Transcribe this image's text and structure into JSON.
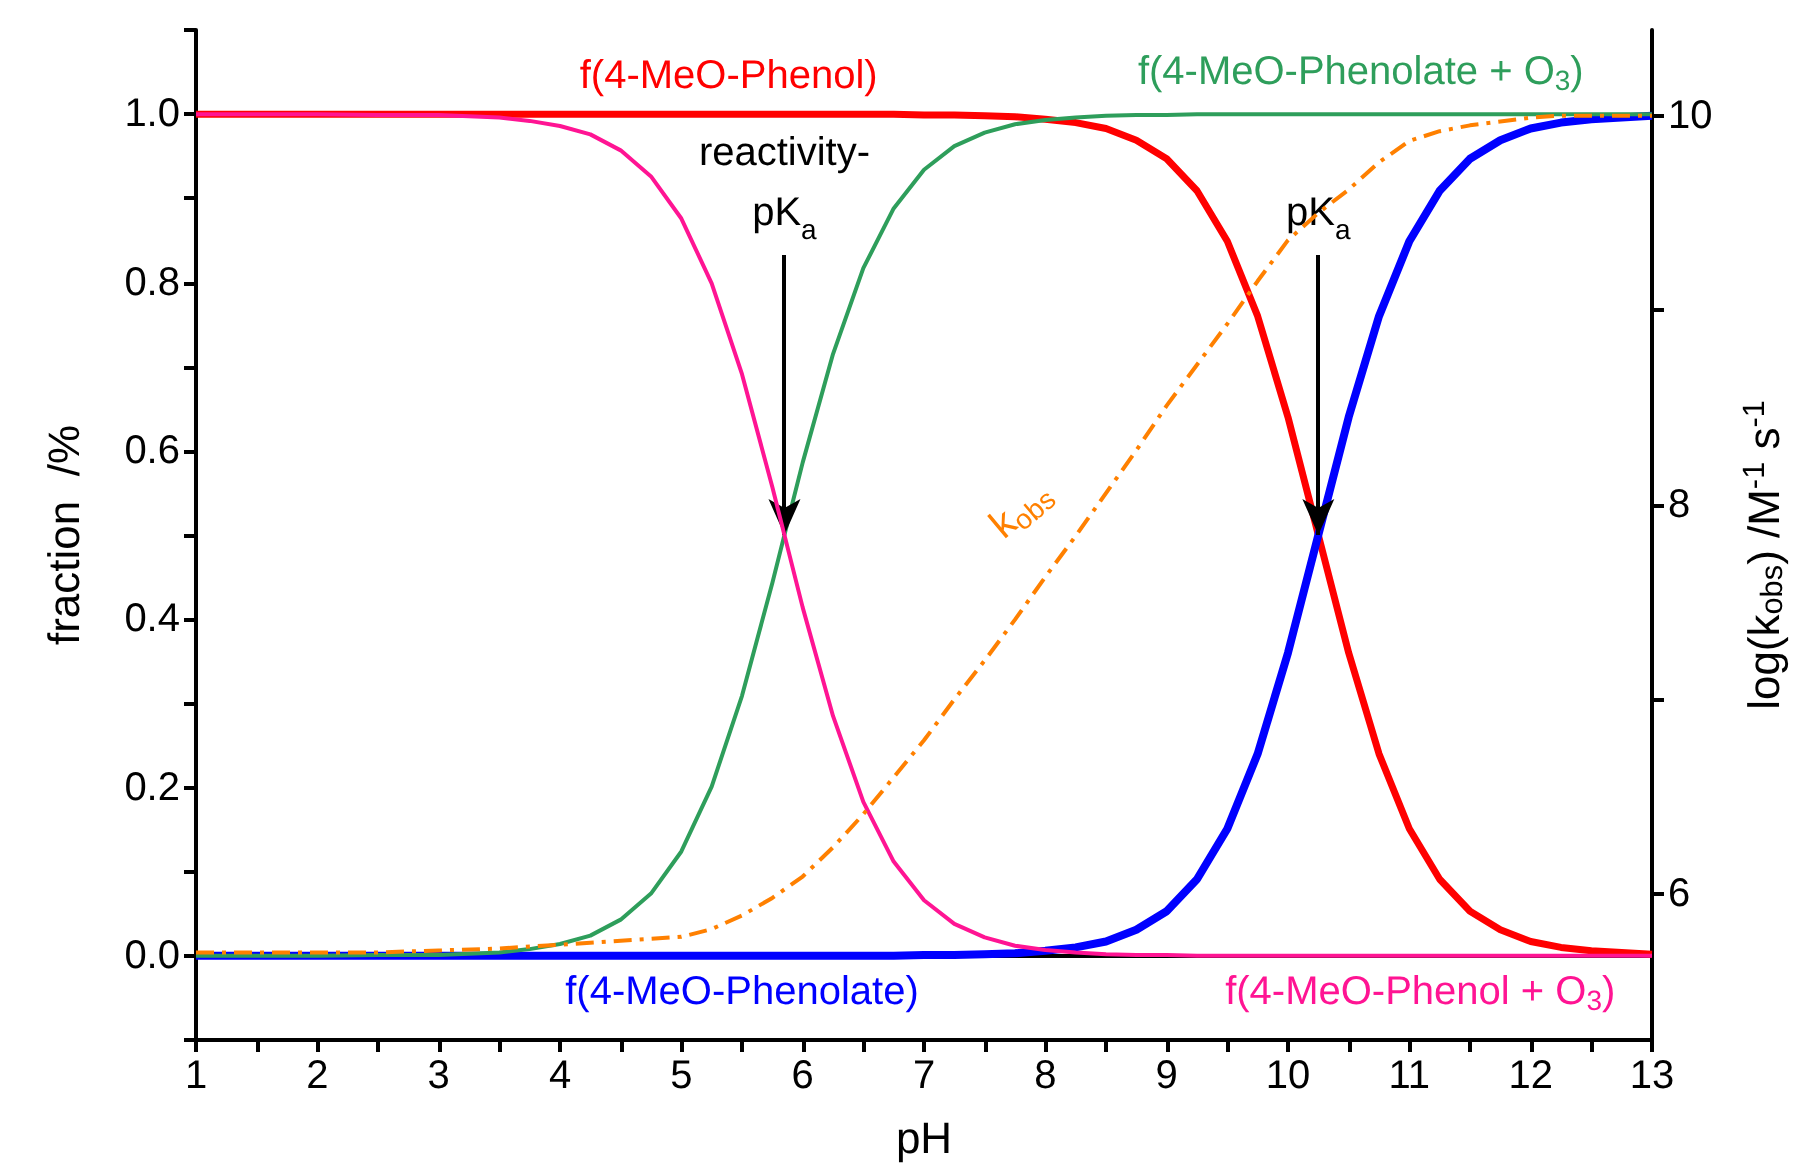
{
  "chart_data": {
    "type": "line",
    "xlabel": "pH",
    "ylabel": "fraction  /%",
    "y2label": "log(k$_{obs}$) /M$^{-1}$ s$^{-1}$",
    "x": [
      1,
      1.5,
      2,
      2.5,
      3,
      3.5,
      3.75,
      4,
      4.25,
      4.5,
      4.75,
      5,
      5.25,
      5.5,
      5.75,
      6,
      6.25,
      6.5,
      6.75,
      7,
      7.25,
      7.5,
      7.75,
      8,
      8.25,
      8.5,
      8.75,
      9,
      9.25,
      9.5,
      9.75,
      10,
      10.25,
      10.5,
      10.75,
      11,
      11.25,
      11.5,
      11.75,
      12,
      12.25,
      12.5,
      13
    ],
    "series": [
      {
        "name": "f(4-MeO-Phenol)",
        "color": "#ff0000",
        "values": [
          1,
          1,
          1,
          1,
          1,
          1,
          1,
          1,
          1,
          1,
          1,
          1,
          1,
          1,
          1,
          1,
          1,
          1,
          1,
          0.999,
          0.999,
          0.998,
          0.997,
          0.994,
          0.99,
          0.983,
          0.969,
          0.947,
          0.909,
          0.849,
          0.76,
          0.64,
          0.5,
          0.36,
          0.24,
          0.151,
          0.091,
          0.053,
          0.031,
          0.017,
          0.01,
          0.006,
          0.002
        ]
      },
      {
        "name": "f(4-MeO-Phenolate)",
        "color": "#0000ff",
        "values": [
          0,
          0,
          0,
          0,
          0,
          0,
          0,
          0,
          0,
          0,
          0,
          0,
          0,
          0,
          0,
          0,
          0,
          0,
          0,
          0.001,
          0.001,
          0.002,
          0.003,
          0.006,
          0.01,
          0.017,
          0.031,
          0.053,
          0.091,
          0.151,
          0.24,
          0.36,
          0.5,
          0.64,
          0.76,
          0.849,
          0.909,
          0.947,
          0.969,
          0.983,
          0.99,
          0.994,
          0.998
        ]
      },
      {
        "name": "f(4-MeO-Phenol + O$_{3}$)",
        "color": "#ff1493",
        "values": [
          1,
          1,
          1,
          0.999,
          0.999,
          0.996,
          0.992,
          0.986,
          0.976,
          0.957,
          0.926,
          0.876,
          0.799,
          0.691,
          0.557,
          0.414,
          0.285,
          0.183,
          0.112,
          0.066,
          0.038,
          0.022,
          0.012,
          0.007,
          0.004,
          0.002,
          0.001,
          0.001,
          0,
          0,
          0,
          0,
          0,
          0,
          0,
          0,
          0,
          0,
          0,
          0,
          0,
          0,
          0
        ]
      },
      {
        "name": "f(4-MeO-Phenolate + O$_{3}$)",
        "color": "#2e9e5b",
        "values": [
          0,
          0,
          0,
          0.001,
          0.001,
          0.004,
          0.008,
          0.014,
          0.024,
          0.043,
          0.074,
          0.124,
          0.201,
          0.309,
          0.443,
          0.586,
          0.715,
          0.817,
          0.888,
          0.934,
          0.962,
          0.978,
          0.988,
          0.993,
          0.996,
          0.998,
          0.999,
          0.999,
          1,
          1,
          1,
          1,
          1,
          1,
          1,
          1,
          1,
          1,
          1,
          1,
          1,
          1,
          1
        ]
      },
      {
        "name": "k$_{obs}$",
        "color": "#ff8000",
        "axis": "y2",
        "line_style": "dashdot",
        "values": [
          5.7,
          5.7,
          5.7,
          5.7,
          5.71,
          5.72,
          5.73,
          5.74,
          5.75,
          5.76,
          5.77,
          5.78,
          5.82,
          5.89,
          5.98,
          6.09,
          6.24,
          6.41,
          6.6,
          6.79,
          7,
          7.2,
          7.41,
          7.63,
          7.84,
          8.06,
          8.28,
          8.51,
          8.72,
          8.93,
          9.15,
          9.36,
          9.5,
          9.62,
          9.76,
          9.87,
          9.92,
          9.95,
          9.97,
          9.99,
          10,
          10,
          10
        ]
      }
    ],
    "xlim": [
      1,
      13
    ],
    "xticks": [
      1,
      {
        "value": 1.5,
        "label": null
      },
      2,
      {
        "value": 2.5,
        "label": null
      },
      3,
      {
        "value": 3.5,
        "label": null
      },
      4,
      {
        "value": 4.5,
        "label": null
      },
      5,
      {
        "value": 5.5,
        "label": null
      },
      6,
      {
        "value": 6.5,
        "label": null
      },
      7,
      {
        "value": 7.5,
        "label": null
      },
      8,
      {
        "value": 8.5,
        "label": null
      },
      9,
      {
        "value": 9.5,
        "label": null
      },
      10,
      {
        "value": 10.5,
        "label": null
      },
      11,
      {
        "value": 11.5,
        "label": null
      },
      12,
      {
        "value": 12.5,
        "label": null
      },
      13
    ],
    "ylim": [
      -0.1,
      1.1
    ],
    "yticks": [
      {
        "value": -0.1,
        "label": null
      },
      {
        "value": 0,
        "label": "0.0"
      },
      {
        "value": 0.1,
        "label": null
      },
      0.2,
      {
        "value": 0.3,
        "label": null
      },
      0.4,
      {
        "value": 0.5,
        "label": null
      },
      0.6,
      {
        "value": 0.7,
        "label": null
      },
      0.8,
      {
        "value": 0.9,
        "label": null
      },
      {
        "value": 1,
        "label": "1.0"
      },
      {
        "value": 1.1,
        "label": null
      }
    ],
    "y2lim": [
      5.25,
      10.44
    ],
    "y2ticks": [
      6,
      {
        "value": 7,
        "label": null
      },
      8,
      {
        "value": 9,
        "label": null
      },
      10
    ],
    "annotations": [
      {
        "text": "reactivity-\npK$_{a}$",
        "x": 5.85,
        "y": 0.5
      },
      {
        "text": "pK$_{a}$",
        "x": 10.25,
        "y": 0.5
      }
    ],
    "legend": false,
    "marker": "none",
    "line_style": "solid"
  }
}
